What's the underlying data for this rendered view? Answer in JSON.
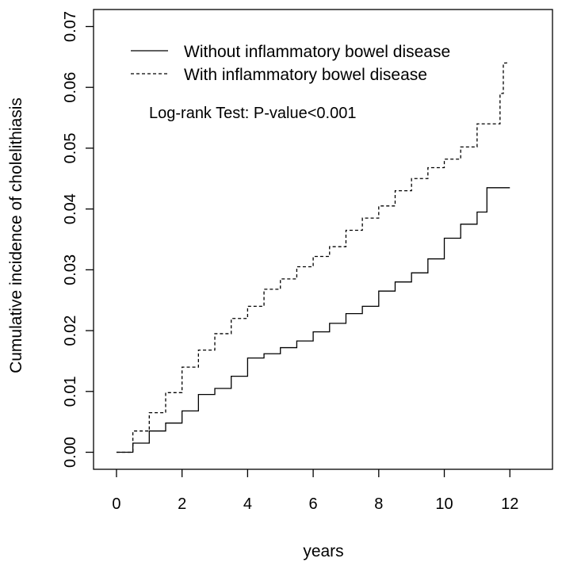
{
  "chart_data": {
    "type": "line",
    "title": "",
    "xlabel": "years",
    "ylabel": "Cumulative incidence of cholelithiasis",
    "xlim": [
      -0.7,
      13.3
    ],
    "ylim": [
      -0.0028,
      0.0728
    ],
    "xticks": [
      0,
      2,
      4,
      6,
      8,
      10,
      12
    ],
    "yticks": [
      0.0,
      0.01,
      0.02,
      0.03,
      0.04,
      0.05,
      0.06,
      0.07
    ],
    "ytick_labels": [
      "0.00",
      "0.01",
      "0.02",
      "0.03",
      "0.04",
      "0.05",
      "0.06",
      "0.07"
    ],
    "xtick_labels": [
      "0",
      "2",
      "4",
      "6",
      "8",
      "10",
      "12"
    ],
    "grid": false,
    "legend_position": "top-left",
    "annotation": "Log-rank Test: P-value<0.001",
    "series": [
      {
        "name": "Without inflammatory bowel disease",
        "style": "solid",
        "x": [
          0,
          0.5,
          1.0,
          1.5,
          2.0,
          2.5,
          3.0,
          3.5,
          4.0,
          4.5,
          5.0,
          5.5,
          6.0,
          6.5,
          7.0,
          7.5,
          8.0,
          8.5,
          9.0,
          9.5,
          10.0,
          10.5,
          11.0,
          11.3,
          11.6,
          12.0
        ],
        "y": [
          0.0,
          0.0015,
          0.0035,
          0.0048,
          0.0068,
          0.0095,
          0.0105,
          0.0125,
          0.0155,
          0.0162,
          0.0172,
          0.0183,
          0.0198,
          0.0212,
          0.0228,
          0.024,
          0.0265,
          0.028,
          0.0295,
          0.0318,
          0.0352,
          0.0375,
          0.0395,
          0.0435,
          0.0435,
          0.0435
        ]
      },
      {
        "name": "With inflammatory bowel disease",
        "style": "dashed",
        "x": [
          0,
          0.5,
          1.0,
          1.5,
          2.0,
          2.5,
          3.0,
          3.5,
          4.0,
          4.5,
          5.0,
          5.5,
          6.0,
          6.5,
          7.0,
          7.5,
          8.0,
          8.5,
          9.0,
          9.5,
          10.0,
          10.5,
          11.0,
          11.5,
          11.7,
          11.8,
          11.9
        ],
        "y": [
          0.0,
          0.0035,
          0.0065,
          0.0098,
          0.014,
          0.0168,
          0.0195,
          0.022,
          0.024,
          0.0268,
          0.0285,
          0.0305,
          0.0322,
          0.0338,
          0.0365,
          0.0385,
          0.0405,
          0.043,
          0.045,
          0.0468,
          0.0482,
          0.0502,
          0.054,
          0.054,
          0.059,
          0.064,
          0.0645
        ]
      }
    ]
  }
}
